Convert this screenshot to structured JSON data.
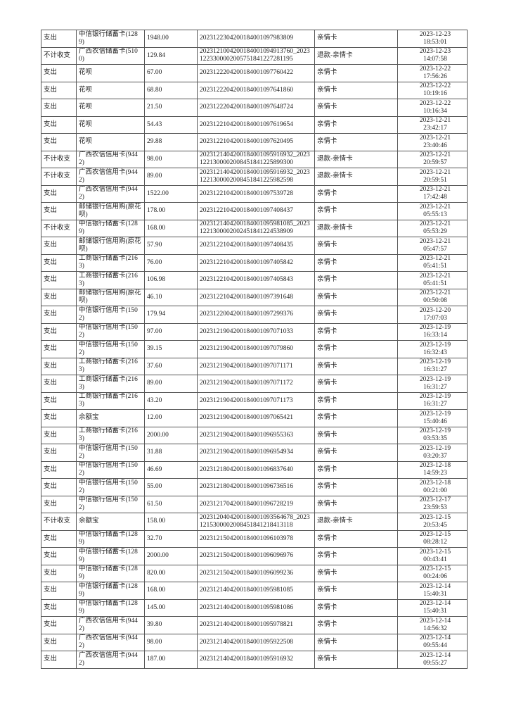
{
  "table": {
    "rows": [
      [
        "支出",
        "中信银行储蓄卡(1289)",
        "1948.00",
        "2023122304200184001097983809",
        "亲情卡",
        "2023-12-23 18:53:01"
      ],
      [
        "不计收支",
        "广西农信储蓄卡(5100)",
        "129.84",
        "2023121004200184001094913760_20231223300002005751841227281195",
        "退款-亲情卡",
        "2023-12-23 14:07:58"
      ],
      [
        "支出",
        "花呗",
        "67.00",
        "2023122204200184001097760422",
        "亲情卡",
        "2023-12-22 17:56:26"
      ],
      [
        "支出",
        "花呗",
        "68.80",
        "2023122204200184001097641860",
        "亲情卡",
        "2023-12-22 10:19:16"
      ],
      [
        "支出",
        "花呗",
        "21.50",
        "2023122204200184001097648724",
        "亲情卡",
        "2023-12-22 10:16:34"
      ],
      [
        "支出",
        "花呗",
        "54.43",
        "2023122104200184001097619654",
        "亲情卡",
        "2023-12-21 23:42:17"
      ],
      [
        "支出",
        "花呗",
        "29.88",
        "2023122104200184001097620495",
        "亲情卡",
        "2023-12-21 23:40:46"
      ],
      [
        "不计收支",
        "广西农信信用卡(9442)",
        "98.00",
        "2023121404200184001095916932_20231221300002008451841225899300",
        "退款-亲情卡",
        "2023-12-21 20:59:57"
      ],
      [
        "不计收支",
        "广西农信信用卡(9442)",
        "89.00",
        "2023121404200184001095916932_20231221300002008451841225982598",
        "退款-亲情卡",
        "2023-12-21 20:59:51"
      ],
      [
        "支出",
        "广西农信信用卡(9442)",
        "1522.00",
        "2023122104200184001097539728",
        "亲情卡",
        "2023-12-21 17:42:48"
      ],
      [
        "支出",
        "邮储银行信用购(原花呗)",
        "178.00",
        "2023122104200184001097408437",
        "亲情卡",
        "2023-12-21 05:55:13"
      ],
      [
        "不计收支",
        "中信银行储蓄卡(1289)",
        "168.00",
        "2023121404200184001095981085_20231221300002002451841224538909",
        "退款-亲情卡",
        "2023-12-21 05:53:29"
      ],
      [
        "支出",
        "邮储银行信用购(原花呗)",
        "57.90",
        "2023122104200184001097408435",
        "亲情卡",
        "2023-12-21 05:47:57"
      ],
      [
        "支出",
        "工商银行储蓄卡(2163)",
        "76.00",
        "2023122104200184001097405842",
        "亲情卡",
        "2023-12-21 05:41:51"
      ],
      [
        "支出",
        "工商银行储蓄卡(2163)",
        "106.98",
        "2023122104200184001097405843",
        "亲情卡",
        "2023-12-21 05:41:51"
      ],
      [
        "支出",
        "邮储银行信用购(原花呗)",
        "46.10",
        "2023122104200184001097391648",
        "亲情卡",
        "2023-12-21 00:50:08"
      ],
      [
        "支出",
        "中信银行信用卡(1502)",
        "179.94",
        "2023122004200184001097299376",
        "亲情卡",
        "2023-12-20 17:07:03"
      ],
      [
        "支出",
        "中信银行信用卡(1502)",
        "97.00",
        "2023121904200184001097071033",
        "亲情卡",
        "2023-12-19 16:33:14"
      ],
      [
        "支出",
        "中信银行信用卡(1502)",
        "39.15",
        "2023121904200184001097079860",
        "亲情卡",
        "2023-12-19 16:32:43"
      ],
      [
        "支出",
        "工商银行储蓄卡(2163)",
        "37.60",
        "2023121904200184001097071171",
        "亲情卡",
        "2023-12-19 16:31:27"
      ],
      [
        "支出",
        "工商银行储蓄卡(2163)",
        "89.00",
        "2023121904200184001097071172",
        "亲情卡",
        "2023-12-19 16:31:27"
      ],
      [
        "支出",
        "工商银行储蓄卡(2163)",
        "43.20",
        "2023121904200184001097071173",
        "亲情卡",
        "2023-12-19 16:31:27"
      ],
      [
        "支出",
        "余额宝",
        "12.00",
        "2023121904200184001097065421",
        "亲情卡",
        "2023-12-19 15:40:46"
      ],
      [
        "支出",
        "工商银行储蓄卡(2163)",
        "2000.00",
        "2023121904200184001096955363",
        "亲情卡",
        "2023-12-19 03:53:35"
      ],
      [
        "支出",
        "中信银行信用卡(1502)",
        "31.88",
        "2023121904200184001096954934",
        "亲情卡",
        "2023-12-19 03:20:37"
      ],
      [
        "支出",
        "中信银行信用卡(1502)",
        "46.69",
        "2023121804200184001096837640",
        "亲情卡",
        "2023-12-18 14:59:23"
      ],
      [
        "支出",
        "中信银行信用卡(1502)",
        "55.00",
        "2023121804200184001096736516",
        "亲情卡",
        "2023-12-18 00:21:00"
      ],
      [
        "支出",
        "中信银行信用卡(1502)",
        "61.50",
        "2023121704200184001096728219",
        "亲情卡",
        "2023-12-17 23:59:53"
      ],
      [
        "不计收支",
        "余额宝",
        "158.00",
        "2023120404200184001093564678_20231215300002008451841218413118",
        "退款-亲情卡",
        "2023-12-15 20:53:45"
      ],
      [
        "支出",
        "中信银行储蓄卡(1289)",
        "32.70",
        "2023121504200184001096103978",
        "亲情卡",
        "2023-12-15 08:28:12"
      ],
      [
        "支出",
        "中信银行储蓄卡(1289)",
        "2000.00",
        "2023121504200184001096096976",
        "亲情卡",
        "2023-12-15 00:43:41"
      ],
      [
        "支出",
        "中信银行储蓄卡(1289)",
        "820.00",
        "2023121504200184001096099236",
        "亲情卡",
        "2023-12-15 00:24:06"
      ],
      [
        "支出",
        "中信银行储蓄卡(1289)",
        "168.00",
        "2023121404200184001095981085",
        "亲情卡",
        "2023-12-14 15:40:31"
      ],
      [
        "支出",
        "中信银行储蓄卡(1289)",
        "145.00",
        "2023121404200184001095981086",
        "亲情卡",
        "2023-12-14 15:40:31"
      ],
      [
        "支出",
        "广西农信信用卡(9442)",
        "39.80",
        "2023121404200184001095978821",
        "亲情卡",
        "2023-12-14 14:56:32"
      ],
      [
        "支出",
        "广西农信信用卡(9442)",
        "98.00",
        "2023121404200184001095922508",
        "亲情卡",
        "2023-12-14 09:55:44"
      ],
      [
        "支出",
        "广西农信信用卡(9442)",
        "187.00",
        "2023121404200184001095916932",
        "亲情卡",
        "2023-12-14 09:55:27"
      ]
    ]
  }
}
